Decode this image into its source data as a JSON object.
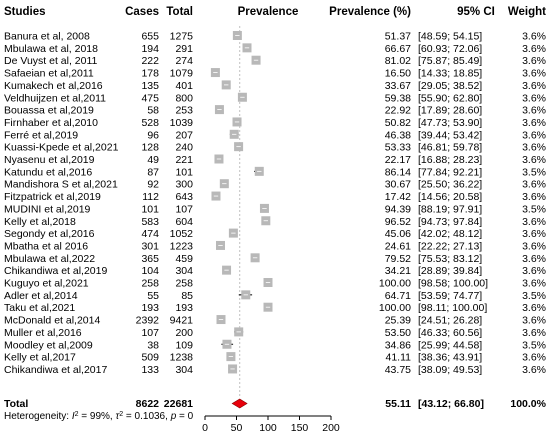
{
  "chart_data": {
    "type": "forest",
    "headers": {
      "studies": "Studies",
      "cases": "Cases",
      "total": "Total",
      "prevalence": "Prevalence",
      "prevalence_pct": "Prevalence (%)",
      "ci": "95% CI",
      "weight": "Weight"
    },
    "xlim": [
      0,
      200
    ],
    "x_ticks": [
      0,
      50,
      100,
      150,
      200
    ],
    "studies": [
      {
        "name": "Banura et al, 2008",
        "cases": "655",
        "total": "1275",
        "prev": 51.37,
        "prev_text": "51.37",
        "lo": 48.59,
        "hi": 54.15,
        "ci_text": "[48.59; 54.15]",
        "weight": "3.6%"
      },
      {
        "name": "Mbulawa et al, 2018",
        "cases": "194",
        "total": "291",
        "prev": 66.67,
        "prev_text": "66.67",
        "lo": 60.93,
        "hi": 72.06,
        "ci_text": "[60.93; 72.06]",
        "weight": "3.6%"
      },
      {
        "name": "De Vuyst  et al, 2011",
        "cases": "222",
        "total": "274",
        "prev": 81.02,
        "prev_text": "81.02",
        "lo": 75.87,
        "hi": 85.49,
        "ci_text": "[75.87; 85.49]",
        "weight": "3.6%"
      },
      {
        "name": "Safaeian et al,2011",
        "cases": "178",
        "total": "1079",
        "prev": 16.5,
        "prev_text": "16.50",
        "lo": 14.33,
        "hi": 18.85,
        "ci_text": "[14.33; 18.85]",
        "weight": "3.6%"
      },
      {
        "name": "Kumakech et al,2016",
        "cases": "135",
        "total": "401",
        "prev": 33.67,
        "prev_text": "33.67",
        "lo": 29.05,
        "hi": 38.52,
        "ci_text": "[29.05; 38.52]",
        "weight": "3.6%"
      },
      {
        "name": "Veldhuijzen et al,2011",
        "cases": "475",
        "total": "800",
        "prev": 59.38,
        "prev_text": "59.38",
        "lo": 55.9,
        "hi": 62.8,
        "ci_text": "[55.90; 62.80]",
        "weight": "3.6%"
      },
      {
        "name": "Bouassa et al,2019",
        "cases": "58",
        "total": "253",
        "prev": 22.92,
        "prev_text": "22.92",
        "lo": 17.89,
        "hi": 28.6,
        "ci_text": "[17.89; 28.60]",
        "weight": "3.6%"
      },
      {
        "name": "Firnhaber et al,2010",
        "cases": "528",
        "total": "1039",
        "prev": 50.82,
        "prev_text": "50.82",
        "lo": 47.73,
        "hi": 53.9,
        "ci_text": "[47.73; 53.90]",
        "weight": "3.6%"
      },
      {
        "name": "Ferré et al,2019",
        "cases": "96",
        "total": "207",
        "prev": 46.38,
        "prev_text": "46.38",
        "lo": 39.44,
        "hi": 53.42,
        "ci_text": "[39.44; 53.42]",
        "weight": "3.6%"
      },
      {
        "name": "Kuassi-Kpede et al,2021",
        "cases": "128",
        "total": "240",
        "prev": 53.33,
        "prev_text": "53.33",
        "lo": 46.81,
        "hi": 59.78,
        "ci_text": "[46.81; 59.78]",
        "weight": "3.6%"
      },
      {
        "name": "Nyasenu et al,2019",
        "cases": "49",
        "total": "221",
        "prev": 22.17,
        "prev_text": "22.17",
        "lo": 16.88,
        "hi": 28.23,
        "ci_text": "[16.88; 28.23]",
        "weight": "3.6%"
      },
      {
        "name": "Katundu et al,2016",
        "cases": "87",
        "total": "101",
        "prev": 86.14,
        "prev_text": "86.14",
        "lo": 77.84,
        "hi": 92.21,
        "ci_text": "[77.84; 92.21]",
        "weight": "3.5%"
      },
      {
        "name": "Mandishora S et al,2021",
        "cases": "92",
        "total": "300",
        "prev": 30.67,
        "prev_text": "30.67",
        "lo": 25.5,
        "hi": 36.22,
        "ci_text": "[25.50; 36.22]",
        "weight": "3.6%"
      },
      {
        "name": "Fitzpatrick et al,2019",
        "cases": "112",
        "total": "643",
        "prev": 17.42,
        "prev_text": "17.42",
        "lo": 14.56,
        "hi": 20.58,
        "ci_text": "[14.56; 20.58]",
        "weight": "3.6%"
      },
      {
        "name": "MUDINI et al,2019",
        "cases": "101",
        "total": "107",
        "prev": 94.39,
        "prev_text": "94.39",
        "lo": 88.19,
        "hi": 97.91,
        "ci_text": "[88.19; 97.91]",
        "weight": "3.5%"
      },
      {
        "name": "Kelly et al,2018",
        "cases": "583",
        "total": "604",
        "prev": 96.52,
        "prev_text": "96.52",
        "lo": 94.73,
        "hi": 97.84,
        "ci_text": "[94.73; 97.84]",
        "weight": "3.6%"
      },
      {
        "name": "Segondy et al,2016",
        "cases": "474",
        "total": "1052",
        "prev": 45.06,
        "prev_text": "45.06",
        "lo": 42.02,
        "hi": 48.12,
        "ci_text": "[42.02; 48.12]",
        "weight": "3.6%"
      },
      {
        "name": "Mbatha et al 2016",
        "cases": "301",
        "total": "1223",
        "prev": 24.61,
        "prev_text": "24.61",
        "lo": 22.22,
        "hi": 27.13,
        "ci_text": "[22.22; 27.13]",
        "weight": "3.6%"
      },
      {
        "name": "Mbulawa et al,2022",
        "cases": "365",
        "total": "459",
        "prev": 79.52,
        "prev_text": "79.52",
        "lo": 75.53,
        "hi": 83.12,
        "ci_text": "[75.53; 83.12]",
        "weight": "3.6%"
      },
      {
        "name": "Chikandiwa et al,2019",
        "cases": "104",
        "total": "304",
        "prev": 34.21,
        "prev_text": "34.21",
        "lo": 28.89,
        "hi": 39.84,
        "ci_text": "[28.89; 39.84]",
        "weight": "3.6%"
      },
      {
        "name": "Kuguyo et al,2021",
        "cases": "258",
        "total": "258",
        "prev": 100.0,
        "prev_text": "100.00",
        "lo": 98.58,
        "hi": 100.0,
        "ci_text": "[98.58; 100.00]",
        "weight": "3.6%"
      },
      {
        "name": "Adler  et al,2014",
        "cases": "55",
        "total": "85",
        "prev": 64.71,
        "prev_text": "64.71",
        "lo": 53.59,
        "hi": 74.77,
        "ci_text": "[53.59; 74.77]",
        "weight": "3.5%"
      },
      {
        "name": "Taku et al,2021",
        "cases": "193",
        "total": "193",
        "prev": 100.0,
        "prev_text": "100.00",
        "lo": 98.11,
        "hi": 100.0,
        "ci_text": "[98.11; 100.00]",
        "weight": "3.6%"
      },
      {
        "name": "McDonald et al,2014",
        "cases": "2392",
        "total": "9421",
        "prev": 25.39,
        "prev_text": "25.39",
        "lo": 24.51,
        "hi": 26.28,
        "ci_text": "[24.51; 26.28]",
        "weight": "3.6%"
      },
      {
        "name": "Muller et al,2016",
        "cases": "107",
        "total": "200",
        "prev": 53.5,
        "prev_text": "53.50",
        "lo": 46.33,
        "hi": 60.56,
        "ci_text": "[46.33; 60.56]",
        "weight": "3.6%"
      },
      {
        "name": "Moodley  et al,2009",
        "cases": "38",
        "total": "109",
        "prev": 34.86,
        "prev_text": "34.86",
        "lo": 25.99,
        "hi": 44.58,
        "ci_text": "[25.99; 44.58]",
        "weight": "3.5%"
      },
      {
        "name": "Kelly et al,2017",
        "cases": "509",
        "total": "1238",
        "prev": 41.11,
        "prev_text": "41.11",
        "lo": 38.36,
        "hi": 43.91,
        "ci_text": "[38.36; 43.91]",
        "weight": "3.6%"
      },
      {
        "name": "Chikandiwa et al,2017",
        "cases": "133",
        "total": "304",
        "prev": 43.75,
        "prev_text": "43.75",
        "lo": 38.09,
        "hi": 49.53,
        "ci_text": "[38.09; 49.53]",
        "weight": "3.6%"
      }
    ],
    "total": {
      "label": "Total",
      "cases": "8622",
      "total": "22681",
      "prev": 55.11,
      "prev_text": "55.11",
      "lo": 43.12,
      "hi": 66.8,
      "ci_text": "[43.12; 66.80]",
      "weight": "100.0%"
    },
    "heterogeneity": {
      "label": "Heterogeneity: ",
      "i2_symbol": "I",
      "i2_value": " = 99%, ",
      "tau_symbol": "τ",
      "tau_value": " = 0.1036, ",
      "p_symbol": "p",
      "p_value": " = 0"
    },
    "colors": {
      "box": "#b8b8b8",
      "diamond": "#e8000b",
      "line": "#000000",
      "ref_line": "#c0c0c0"
    }
  }
}
